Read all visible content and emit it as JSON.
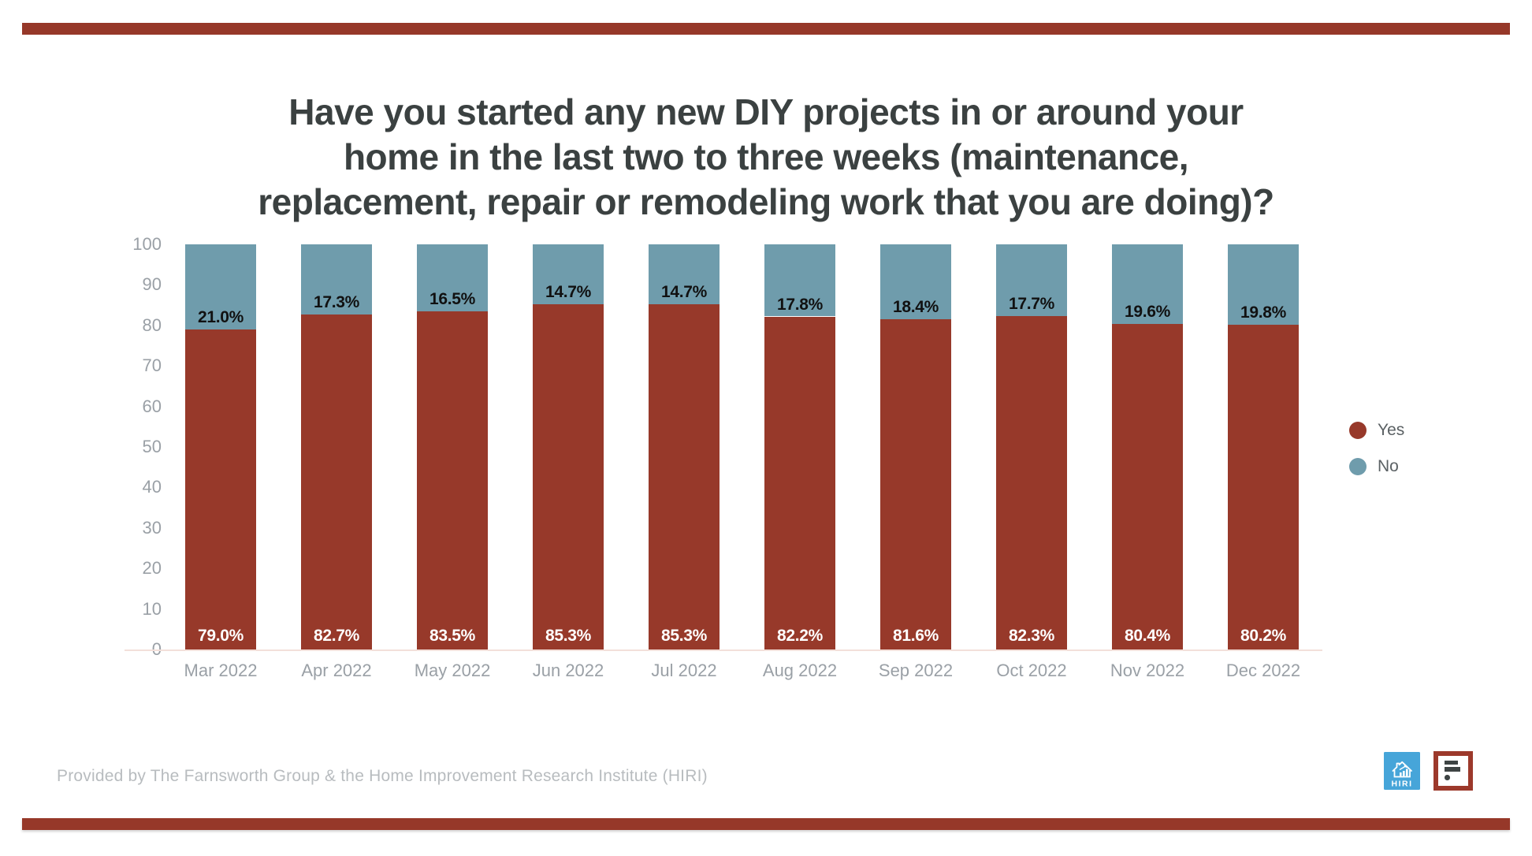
{
  "page": {
    "band_color": "#963829",
    "background": "#ffffff"
  },
  "title": {
    "line1": "Have you started any new DIY projects in or around your",
    "line2": "home in the last two to three weeks (maintenance,",
    "line3": "replacement, repair or remodeling work that you are doing)?",
    "full": "Have you started any new DIY projects in or around your home in the last two to three weeks (maintenance, replacement, repair or remodeling work that you are doing)?"
  },
  "chart_data": {
    "type": "bar",
    "stacked": true,
    "categories": [
      "Mar 2022",
      "Apr 2022",
      "May 2022",
      "Jun 2022",
      "Jul 2022",
      "Aug 2022",
      "Sep 2022",
      "Oct 2022",
      "Nov 2022",
      "Dec 2022"
    ],
    "series": [
      {
        "name": "Yes",
        "color": "#97392a",
        "values": [
          79.0,
          82.7,
          83.5,
          85.3,
          85.3,
          82.2,
          81.6,
          82.3,
          80.4,
          80.2
        ]
      },
      {
        "name": "No",
        "color": "#6f9cac",
        "values": [
          21.0,
          17.3,
          16.5,
          14.7,
          14.7,
          17.8,
          18.4,
          17.7,
          19.6,
          19.8
        ]
      }
    ],
    "value_suffix": "%",
    "ylim": [
      0,
      100
    ],
    "yticks": [
      0,
      10,
      20,
      30,
      40,
      50,
      60,
      70,
      80,
      90,
      100
    ],
    "grid": false,
    "legend_position": "right",
    "inside_label_color": "#ffffff",
    "outside_label_color": "#111111",
    "axis_text_color": "#9aa0a6"
  },
  "legend": {
    "items": [
      {
        "label": "Yes",
        "color": "#97392a"
      },
      {
        "label": "No",
        "color": "#6f9cac"
      }
    ]
  },
  "footer": {
    "text": "Provided by The Farnsworth Group & the Home Improvement Research Institute (HIRI)"
  },
  "logos": {
    "hiri_label": "HIRI",
    "hiri_bg": "#46a5d9",
    "farnsworth_border": "#9c392b"
  }
}
